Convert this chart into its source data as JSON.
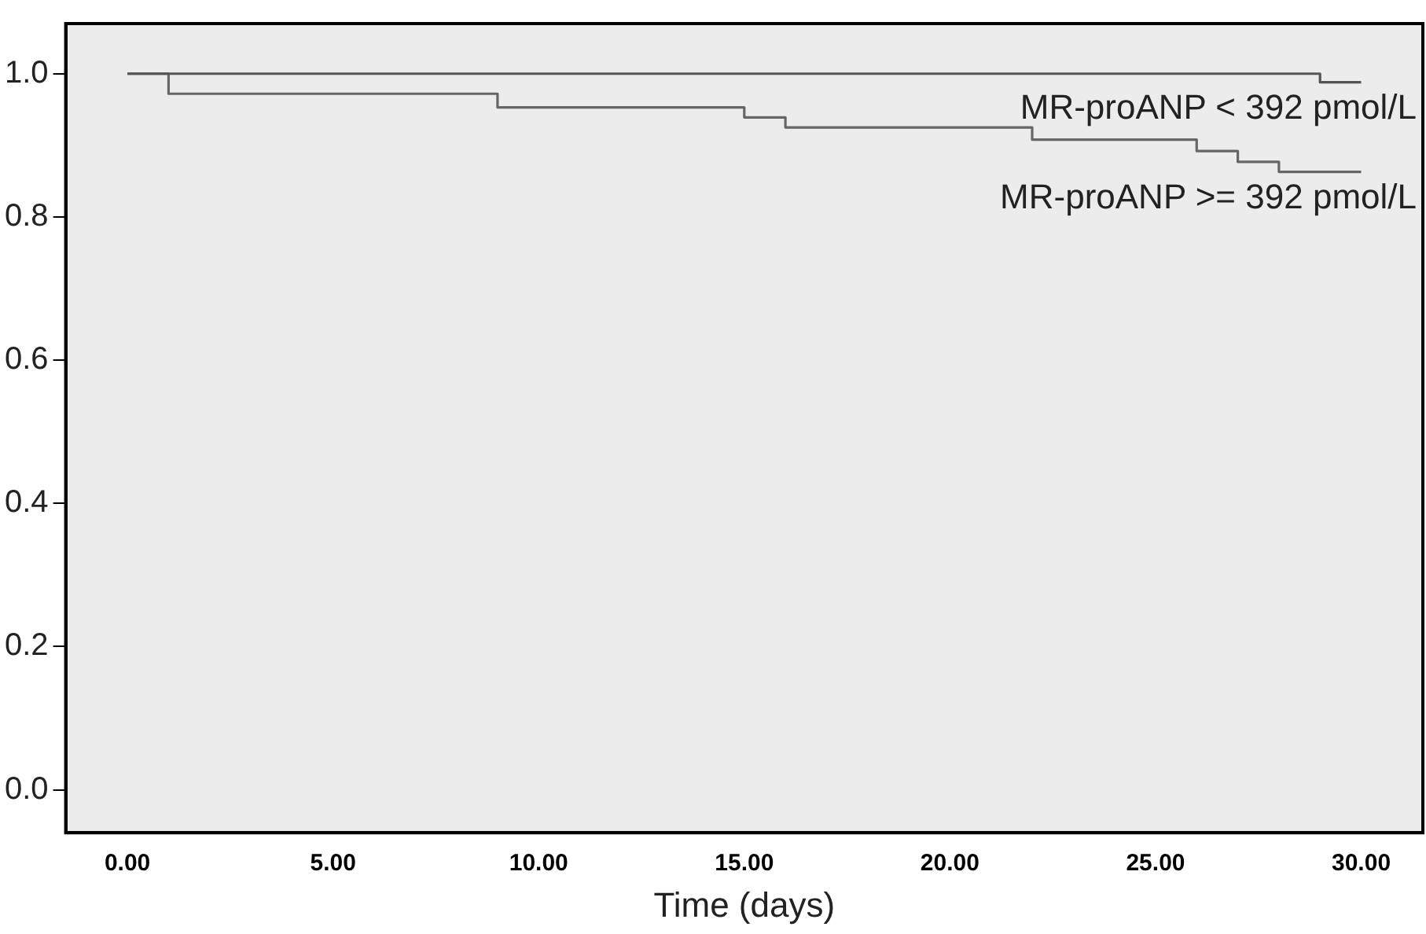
{
  "chart_data": {
    "type": "step",
    "xlabel": "Time (days)",
    "series": [
      {
        "name": "MR-proANP < 392 pmol/L",
        "color": "#555555",
        "x": [
          0,
          29,
          30
        ],
        "values": [
          1.0,
          0.988,
          0.988
        ]
      },
      {
        "name": "MR-proANP >= 392 pmol/L",
        "color": "#666666",
        "x": [
          0,
          1,
          9,
          15,
          16,
          22,
          26,
          27,
          28,
          30
        ],
        "values": [
          1.0,
          0.972,
          0.953,
          0.939,
          0.925,
          0.908,
          0.892,
          0.877,
          0.863,
          0.863
        ]
      }
    ],
    "xlim": [
      -1.5,
      31.5
    ],
    "ylim": [
      -0.06,
      1.07
    ],
    "xticks": [
      {
        "value": 0,
        "label": "0.00"
      },
      {
        "value": 5,
        "label": "5.00"
      },
      {
        "value": 10,
        "label": "10.00"
      },
      {
        "value": 15,
        "label": "15.00"
      },
      {
        "value": 20,
        "label": "20.00"
      },
      {
        "value": 25,
        "label": "25.00"
      },
      {
        "value": 30,
        "label": "30.00"
      }
    ],
    "yticks": [
      {
        "value": 0,
        "label": "0.0"
      },
      {
        "value": 0.2,
        "label": "0.2"
      },
      {
        "value": 0.4,
        "label": "0.4"
      },
      {
        "value": 0.6,
        "label": "0.6"
      },
      {
        "value": 0.8,
        "label": "0.8"
      },
      {
        "value": 1,
        "label": "1.0"
      }
    ],
    "grid": false,
    "legend": false,
    "marker": "none",
    "line_style": "solid"
  }
}
